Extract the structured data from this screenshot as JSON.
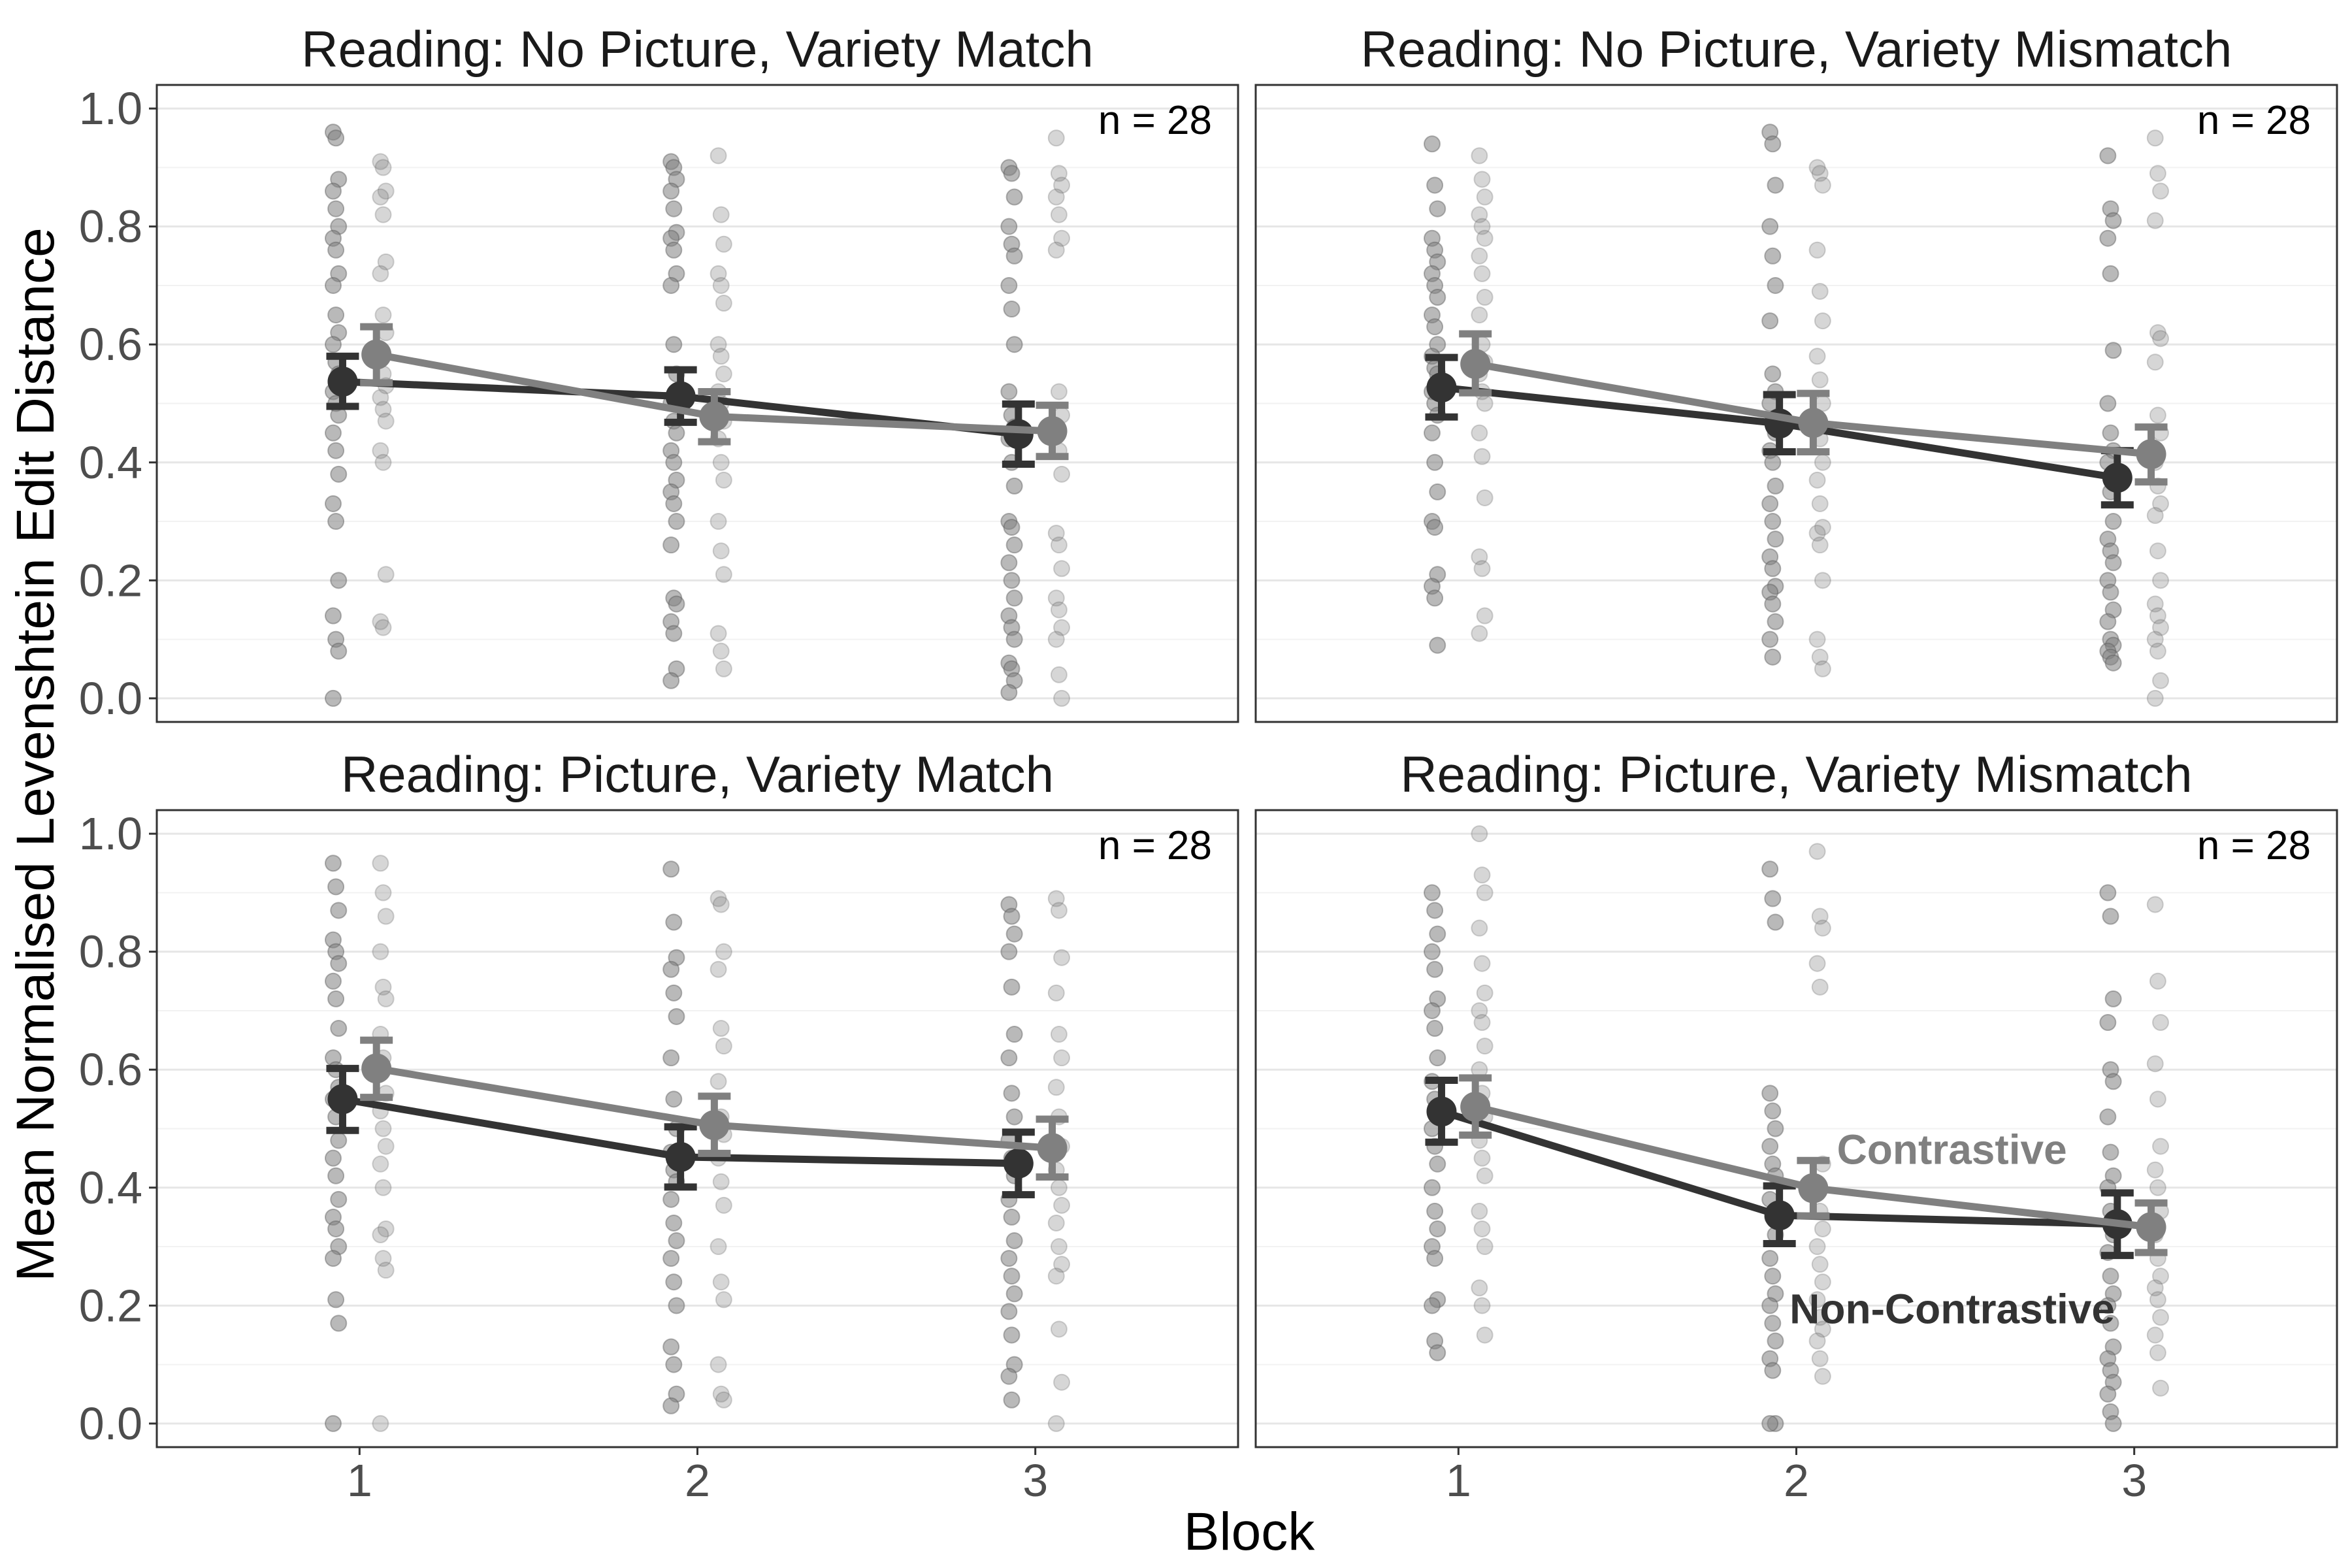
{
  "chart_data": {
    "type": "scatter",
    "xlabel": "Block",
    "ylabel": "Mean Normalised Levenshtein Edit Distance",
    "ylim": [
      -0.04,
      1.04
    ],
    "xlim": [
      0.4,
      3.6
    ],
    "y_ticks": [
      "0.0",
      "0.2",
      "0.4",
      "0.6",
      "0.8",
      "1.0"
    ],
    "y_tick_values": [
      0,
      0.2,
      0.4,
      0.6,
      0.8,
      1.0
    ],
    "x_ticks": [
      "1",
      "2",
      "3"
    ],
    "x_tick_values": [
      1,
      2,
      3
    ],
    "grid": true,
    "colors": {
      "contrastive": "#808080",
      "non_contrastive": "#333333",
      "points": "#7f7f7f"
    },
    "legend": {
      "contrastive": "Contrastive",
      "non_contrastive": "Non-Contrastive"
    },
    "panels": [
      {
        "title": "Reading: No Picture, Variety Match",
        "n_label": "n =  28",
        "means": {
          "non_contrastive": [
            0.537,
            0.512,
            0.448
          ],
          "contrastive": [
            0.583,
            0.478,
            0.453
          ]
        },
        "ci": {
          "non_contrastive": [
            [
              0.495,
              0.58
            ],
            [
              0.468,
              0.557
            ],
            [
              0.397,
              0.499
            ]
          ],
          "contrastive": [
            [
              0.535,
              0.63
            ],
            [
              0.435,
              0.52
            ],
            [
              0.41,
              0.497
            ]
          ]
        },
        "points": {
          "non_contrastive": [
            [
              0.96,
              0.95,
              0.88,
              0.86,
              0.83,
              0.8,
              0.78,
              0.76,
              0.72,
              0.7,
              0.65,
              0.62,
              0.6,
              0.57,
              0.55,
              0.52,
              0.5,
              0.48,
              0.45,
              0.42,
              0.38,
              0.33,
              0.3,
              0.2,
              0.14,
              0.1,
              0.08,
              0.0
            ],
            [
              0.91,
              0.9,
              0.88,
              0.86,
              0.83,
              0.79,
              0.78,
              0.76,
              0.72,
              0.7,
              0.6,
              0.55,
              0.5,
              0.47,
              0.45,
              0.42,
              0.4,
              0.37,
              0.35,
              0.33,
              0.3,
              0.26,
              0.17,
              0.16,
              0.13,
              0.11,
              0.05,
              0.03
            ],
            [
              0.9,
              0.89,
              0.85,
              0.8,
              0.77,
              0.75,
              0.7,
              0.66,
              0.6,
              0.52,
              0.48,
              0.46,
              0.44,
              0.4,
              0.36,
              0.3,
              0.29,
              0.26,
              0.23,
              0.2,
              0.17,
              0.14,
              0.12,
              0.1,
              0.06,
              0.05,
              0.03,
              0.01
            ]
          ],
          "contrastive": [
            [
              0.91,
              0.9,
              0.86,
              0.85,
              0.82,
              0.74,
              0.72,
              0.65,
              0.62,
              0.58,
              0.55,
              0.53,
              0.51,
              0.49,
              0.47,
              0.42,
              0.4,
              0.21,
              0.13,
              0.12
            ],
            [
              0.92,
              0.82,
              0.77,
              0.72,
              0.7,
              0.67,
              0.6,
              0.58,
              0.55,
              0.52,
              0.5,
              0.47,
              0.44,
              0.4,
              0.37,
              0.3,
              0.25,
              0.21,
              0.11,
              0.08,
              0.05
            ],
            [
              0.95,
              0.89,
              0.87,
              0.85,
              0.82,
              0.78,
              0.76,
              0.52,
              0.48,
              0.45,
              0.42,
              0.38,
              0.28,
              0.26,
              0.22,
              0.17,
              0.15,
              0.12,
              0.1,
              0.04,
              0.0
            ]
          ]
        }
      },
      {
        "title": "Reading: No Picture, Variety Mismatch",
        "n_label": "n =  28",
        "means": {
          "non_contrastive": [
            0.527,
            0.466,
            0.374
          ],
          "contrastive": [
            0.567,
            0.467,
            0.414
          ]
        },
        "ci": {
          "non_contrastive": [
            [
              0.477,
              0.578
            ],
            [
              0.418,
              0.515
            ],
            [
              0.328,
              0.42
            ]
          ],
          "contrastive": [
            [
              0.518,
              0.618
            ],
            [
              0.418,
              0.517
            ],
            [
              0.367,
              0.46
            ]
          ]
        },
        "points": {
          "non_contrastive": [
            [
              0.94,
              0.87,
              0.83,
              0.78,
              0.76,
              0.74,
              0.72,
              0.7,
              0.68,
              0.65,
              0.63,
              0.6,
              0.58,
              0.56,
              0.55,
              0.52,
              0.5,
              0.48,
              0.45,
              0.4,
              0.35,
              0.3,
              0.29,
              0.21,
              0.19,
              0.17,
              0.09
            ],
            [
              0.96,
              0.94,
              0.87,
              0.8,
              0.75,
              0.7,
              0.64,
              0.55,
              0.52,
              0.5,
              0.47,
              0.45,
              0.42,
              0.4,
              0.36,
              0.33,
              0.3,
              0.27,
              0.24,
              0.22,
              0.19,
              0.18,
              0.16,
              0.13,
              0.1,
              0.07
            ],
            [
              0.92,
              0.83,
              0.81,
              0.78,
              0.72,
              0.59,
              0.5,
              0.45,
              0.42,
              0.4,
              0.35,
              0.3,
              0.27,
              0.25,
              0.23,
              0.2,
              0.18,
              0.15,
              0.13,
              0.1,
              0.09,
              0.08,
              0.07,
              0.06
            ]
          ],
          "contrastive": [
            [
              0.92,
              0.88,
              0.85,
              0.82,
              0.8,
              0.78,
              0.75,
              0.72,
              0.68,
              0.65,
              0.6,
              0.57,
              0.55,
              0.52,
              0.5,
              0.45,
              0.41,
              0.34,
              0.24,
              0.22,
              0.14,
              0.11
            ],
            [
              0.9,
              0.89,
              0.87,
              0.76,
              0.69,
              0.64,
              0.58,
              0.54,
              0.5,
              0.47,
              0.44,
              0.4,
              0.37,
              0.33,
              0.29,
              0.28,
              0.26,
              0.2,
              0.1,
              0.07,
              0.05
            ],
            [
              0.95,
              0.89,
              0.86,
              0.81,
              0.62,
              0.61,
              0.57,
              0.48,
              0.45,
              0.4,
              0.36,
              0.33,
              0.31,
              0.25,
              0.2,
              0.16,
              0.14,
              0.12,
              0.1,
              0.08,
              0.03,
              0.0
            ]
          ]
        }
      },
      {
        "title": "Reading: Picture, Variety Match",
        "n_label": "n =  28",
        "means": {
          "non_contrastive": [
            0.55,
            0.452,
            0.441
          ],
          "contrastive": [
            0.602,
            0.506,
            0.467
          ]
        },
        "ci": {
          "non_contrastive": [
            [
              0.497,
              0.602
            ],
            [
              0.401,
              0.503
            ],
            [
              0.388,
              0.494
            ]
          ],
          "contrastive": [
            [
              0.553,
              0.65
            ],
            [
              0.458,
              0.555
            ],
            [
              0.418,
              0.516
            ]
          ]
        },
        "points": {
          "non_contrastive": [
            [
              0.95,
              0.91,
              0.87,
              0.82,
              0.8,
              0.78,
              0.75,
              0.72,
              0.67,
              0.62,
              0.6,
              0.57,
              0.55,
              0.52,
              0.48,
              0.45,
              0.42,
              0.38,
              0.35,
              0.33,
              0.3,
              0.28,
              0.21,
              0.17,
              0.0
            ],
            [
              0.94,
              0.85,
              0.79,
              0.77,
              0.73,
              0.69,
              0.62,
              0.55,
              0.5,
              0.46,
              0.43,
              0.41,
              0.38,
              0.34,
              0.31,
              0.28,
              0.24,
              0.2,
              0.13,
              0.1,
              0.05,
              0.03
            ],
            [
              0.88,
              0.86,
              0.83,
              0.8,
              0.74,
              0.66,
              0.62,
              0.56,
              0.52,
              0.48,
              0.45,
              0.42,
              0.38,
              0.35,
              0.31,
              0.28,
              0.25,
              0.22,
              0.19,
              0.15,
              0.1,
              0.08,
              0.04
            ]
          ],
          "contrastive": [
            [
              0.95,
              0.9,
              0.86,
              0.8,
              0.74,
              0.72,
              0.66,
              0.62,
              0.56,
              0.53,
              0.5,
              0.47,
              0.44,
              0.4,
              0.33,
              0.32,
              0.28,
              0.26,
              0.0
            ],
            [
              0.89,
              0.88,
              0.8,
              0.77,
              0.67,
              0.64,
              0.58,
              0.52,
              0.49,
              0.45,
              0.41,
              0.37,
              0.3,
              0.24,
              0.21,
              0.1,
              0.05,
              0.04
            ],
            [
              0.89,
              0.87,
              0.79,
              0.73,
              0.66,
              0.62,
              0.57,
              0.52,
              0.47,
              0.43,
              0.4,
              0.37,
              0.34,
              0.3,
              0.27,
              0.25,
              0.16,
              0.07,
              0.0
            ]
          ]
        }
      },
      {
        "title": "Reading: Picture, Variety Mismatch",
        "n_label": "n =  28",
        "means": {
          "non_contrastive": [
            0.529,
            0.353,
            0.338
          ],
          "contrastive": [
            0.537,
            0.399,
            0.333
          ]
        },
        "ci": {
          "non_contrastive": [
            [
              0.477,
              0.582
            ],
            [
              0.305,
              0.403
            ],
            [
              0.285,
              0.391
            ]
          ],
          "contrastive": [
            [
              0.489,
              0.586
            ],
            [
              0.352,
              0.446
            ],
            [
              0.29,
              0.374
            ]
          ]
        },
        "points": {
          "non_contrastive": [
            [
              0.9,
              0.87,
              0.83,
              0.8,
              0.77,
              0.72,
              0.7,
              0.67,
              0.62,
              0.58,
              0.55,
              0.52,
              0.5,
              0.47,
              0.44,
              0.4,
              0.36,
              0.33,
              0.3,
              0.28,
              0.21,
              0.2,
              0.14,
              0.12
            ],
            [
              0.94,
              0.89,
              0.85,
              0.56,
              0.53,
              0.5,
              0.47,
              0.44,
              0.42,
              0.38,
              0.35,
              0.32,
              0.28,
              0.25,
              0.22,
              0.2,
              0.17,
              0.14,
              0.11,
              0.09,
              0.0,
              0.0
            ],
            [
              0.9,
              0.86,
              0.72,
              0.68,
              0.6,
              0.58,
              0.52,
              0.46,
              0.42,
              0.4,
              0.36,
              0.32,
              0.29,
              0.25,
              0.22,
              0.2,
              0.17,
              0.13,
              0.11,
              0.09,
              0.07,
              0.05,
              0.02,
              0.0
            ]
          ],
          "contrastive": [
            [
              1.0,
              0.93,
              0.9,
              0.84,
              0.78,
              0.73,
              0.7,
              0.68,
              0.64,
              0.6,
              0.56,
              0.52,
              0.48,
              0.45,
              0.42,
              0.36,
              0.33,
              0.3,
              0.23,
              0.2,
              0.15
            ],
            [
              0.97,
              0.86,
              0.84,
              0.78,
              0.74,
              0.44,
              0.4,
              0.36,
              0.33,
              0.3,
              0.27,
              0.24,
              0.21,
              0.18,
              0.16,
              0.14,
              0.11,
              0.08
            ],
            [
              0.88,
              0.75,
              0.68,
              0.61,
              0.55,
              0.47,
              0.43,
              0.4,
              0.36,
              0.32,
              0.28,
              0.25,
              0.23,
              0.21,
              0.18,
              0.15,
              0.12,
              0.06
            ]
          ]
        }
      }
    ]
  }
}
